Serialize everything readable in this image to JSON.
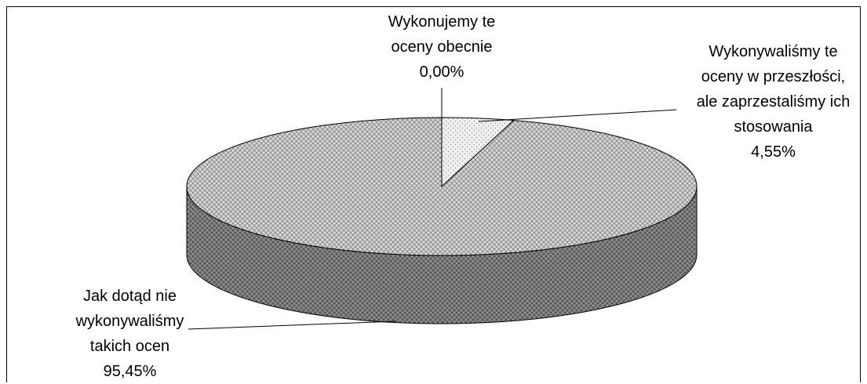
{
  "chart_data": {
    "type": "pie3d",
    "categories": [
      "Wykonujemy te oceny obecnie",
      "Wykonywaliśmy te oceny w przeszłości, ale zaprzestaliśmy ich stosowania",
      "Jak dotąd nie wykonywaliśmy takich ocen"
    ],
    "values": [
      0,
      4.55,
      95.45
    ],
    "value_labels": [
      "0,00%",
      "4,55%",
      "95,45%"
    ],
    "colors": [
      "#f4f4f4",
      "#f0f0f0",
      "#d8d8d8"
    ]
  }
}
